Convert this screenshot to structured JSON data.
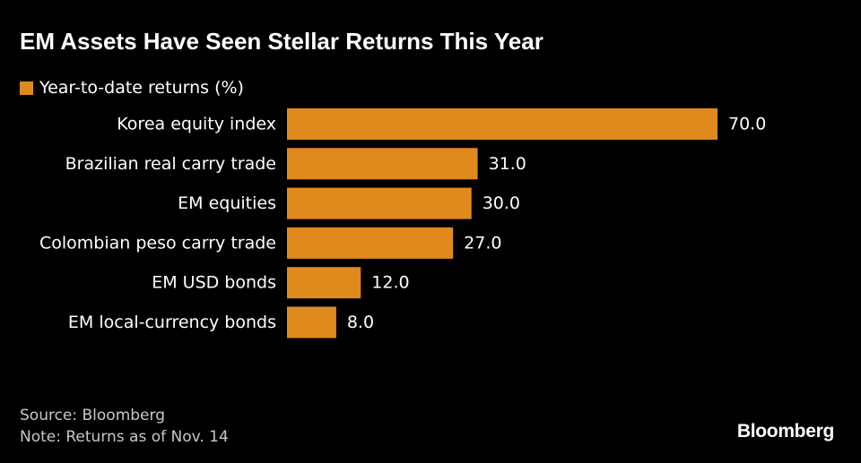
{
  "colors": {
    "bar": "#e08a1e",
    "background": "#000000",
    "text": "#ffffff",
    "muted": "#c8c8c8"
  },
  "chart_data": {
    "type": "bar",
    "orientation": "horizontal",
    "title": "EM Assets Have Seen Stellar Returns This Year",
    "legend": "Year-to-date returns (%)",
    "categories": [
      "Korea equity index",
      "Brazilian real carry trade",
      "EM equities",
      "Colombian peso carry trade",
      "EM USD bonds",
      "EM local-currency bonds"
    ],
    "values": [
      70.0,
      31.0,
      30.0,
      27.0,
      12.0,
      8.0
    ],
    "value_labels": [
      "70.0",
      "31.0",
      "30.0",
      "27.0",
      "12.0",
      "8.0"
    ],
    "xlim": [
      0,
      70
    ]
  },
  "footer": {
    "source": "Source: Bloomberg",
    "note": "Note: Returns as of Nov. 14"
  },
  "brand": "Bloomberg"
}
